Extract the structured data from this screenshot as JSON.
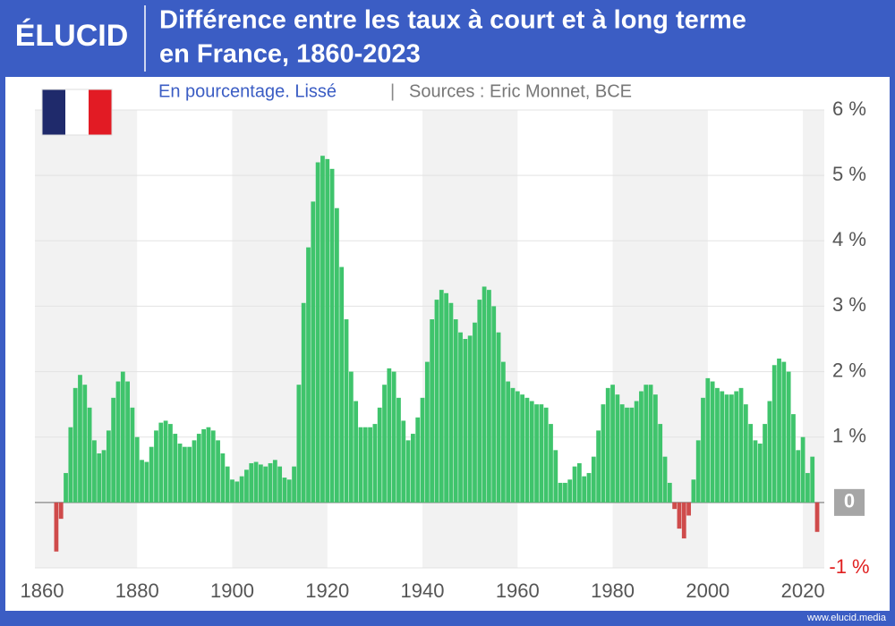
{
  "chart_data": {
    "type": "bar",
    "brand": "ÉLUCID",
    "title": [
      "Différence entre les taux à court et à long terme",
      "en France, 1860-2023"
    ],
    "subtitle": "En pourcentage. Lissé",
    "source": "Sources : Eric Monnet, BCE",
    "footer": "www.elucid.media",
    "color": "#3fc46c",
    "negative_color": "#cf4b4b",
    "grid": true,
    "x": [
      1860,
      1861,
      1862,
      1863,
      1864,
      1865,
      1866,
      1867,
      1868,
      1869,
      1870,
      1871,
      1872,
      1873,
      1874,
      1875,
      1876,
      1877,
      1878,
      1879,
      1880,
      1881,
      1882,
      1883,
      1884,
      1885,
      1886,
      1887,
      1888,
      1889,
      1890,
      1891,
      1892,
      1893,
      1894,
      1895,
      1896,
      1897,
      1898,
      1899,
      1900,
      1901,
      1902,
      1903,
      1904,
      1905,
      1906,
      1907,
      1908,
      1909,
      1910,
      1911,
      1912,
      1913,
      1914,
      1915,
      1916,
      1917,
      1918,
      1919,
      1920,
      1921,
      1922,
      1923,
      1924,
      1925,
      1926,
      1927,
      1928,
      1929,
      1930,
      1931,
      1932,
      1933,
      1934,
      1935,
      1936,
      1937,
      1938,
      1939,
      1940,
      1941,
      1942,
      1943,
      1944,
      1945,
      1946,
      1947,
      1948,
      1949,
      1950,
      1951,
      1952,
      1953,
      1954,
      1955,
      1956,
      1957,
      1958,
      1959,
      1960,
      1961,
      1962,
      1963,
      1964,
      1965,
      1966,
      1967,
      1968,
      1969,
      1970,
      1971,
      1972,
      1973,
      1974,
      1975,
      1976,
      1977,
      1978,
      1979,
      1980,
      1981,
      1982,
      1983,
      1984,
      1985,
      1986,
      1987,
      1988,
      1989,
      1990,
      1991,
      1992,
      1993,
      1994,
      1995,
      1996,
      1997,
      1998,
      1999,
      2000,
      2001,
      2002,
      2003,
      2004,
      2005,
      2006,
      2007,
      2008,
      2009,
      2010,
      2011,
      2012,
      2013,
      2014,
      2015,
      2016,
      2017,
      2018,
      2019,
      2020,
      2021,
      2022,
      2023
    ],
    "values": [
      0,
      0,
      0,
      -0.75,
      -0.25,
      0.45,
      1.15,
      1.75,
      1.95,
      1.8,
      1.45,
      0.95,
      0.75,
      0.8,
      1.1,
      1.6,
      1.85,
      2.0,
      1.85,
      1.45,
      1.0,
      0.65,
      0.62,
      0.85,
      1.1,
      1.22,
      1.25,
      1.2,
      1.05,
      0.9,
      0.85,
      0.85,
      0.95,
      1.05,
      1.12,
      1.15,
      1.1,
      0.95,
      0.75,
      0.55,
      0.35,
      0.32,
      0.4,
      0.5,
      0.6,
      0.62,
      0.58,
      0.55,
      0.6,
      0.65,
      0.55,
      0.38,
      0.35,
      0.55,
      1.8,
      3.05,
      3.9,
      4.6,
      5.2,
      5.3,
      5.25,
      5.1,
      4.5,
      3.6,
      2.8,
      2.0,
      1.55,
      1.15,
      1.15,
      1.15,
      1.2,
      1.45,
      1.8,
      2.05,
      2.0,
      1.6,
      1.25,
      0.95,
      1.05,
      1.3,
      1.6,
      2.15,
      2.8,
      3.1,
      3.25,
      3.2,
      3.05,
      2.8,
      2.6,
      2.5,
      2.55,
      2.75,
      3.1,
      3.3,
      3.25,
      3.0,
      2.6,
      2.15,
      1.85,
      1.75,
      1.7,
      1.65,
      1.6,
      1.55,
      1.5,
      1.5,
      1.45,
      1.2,
      0.8,
      0.3,
      0.3,
      0.35,
      0.55,
      0.6,
      0.4,
      0.45,
      0.7,
      1.1,
      1.5,
      1.75,
      1.8,
      1.65,
      1.5,
      1.45,
      1.45,
      1.55,
      1.7,
      1.8,
      1.8,
      1.65,
      1.2,
      0.7,
      0.3,
      -0.1,
      -0.4,
      -0.55,
      -0.2,
      0.35,
      0.95,
      1.6,
      1.9,
      1.85,
      1.75,
      1.7,
      1.65,
      1.65,
      1.7,
      1.75,
      1.5,
      1.2,
      0.95,
      0.9,
      1.2,
      1.55,
      2.1,
      2.2,
      2.15,
      2.0,
      1.35,
      0.8,
      1.0,
      0.45,
      0.7,
      -0.45
    ],
    "xlim": [
      1858.5,
      2024.5
    ],
    "xticks": [
      1860,
      1880,
      1900,
      1920,
      1940,
      1960,
      1980,
      2000,
      2020
    ],
    "ylim": [
      -1,
      6
    ],
    "yticks": [
      {
        "value": -1,
        "label": "-1 %"
      },
      0,
      {
        "value": 1,
        "label": "1 %"
      },
      {
        "value": 2,
        "label": "2 %"
      },
      {
        "value": 3,
        "label": "3 %"
      },
      {
        "value": 4,
        "label": "4 %"
      },
      {
        "value": 5,
        "label": "5 %"
      },
      {
        "value": 6,
        "label": "6 %"
      }
    ]
  }
}
